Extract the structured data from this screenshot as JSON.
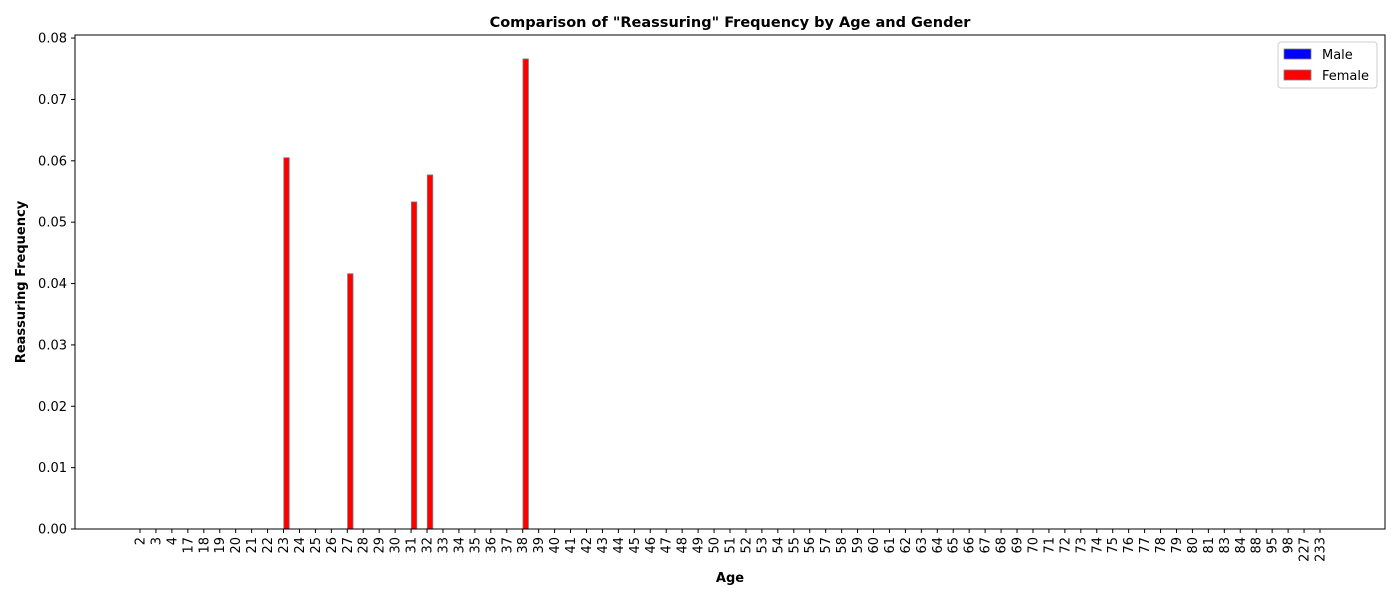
{
  "chart_data": {
    "type": "bar",
    "title": "Comparison of \"Reassuring\" Frequency by Age and Gender",
    "xlabel": "Age",
    "ylabel": "Reassuring Frequency",
    "ylim": [
      0,
      0.0805
    ],
    "yticks": [
      "0.00",
      "0.01",
      "0.02",
      "0.03",
      "0.04",
      "0.05",
      "0.06",
      "0.07",
      "0.08"
    ],
    "grid": false,
    "legend_position": "top-right",
    "categories": [
      "2",
      "3",
      "4",
      "17",
      "18",
      "19",
      "20",
      "21",
      "22",
      "23",
      "24",
      "25",
      "26",
      "27",
      "28",
      "29",
      "30",
      "31",
      "32",
      "33",
      "34",
      "35",
      "36",
      "37",
      "38",
      "39",
      "40",
      "41",
      "42",
      "43",
      "44",
      "45",
      "46",
      "47",
      "48",
      "49",
      "50",
      "51",
      "52",
      "53",
      "54",
      "55",
      "56",
      "57",
      "58",
      "59",
      "60",
      "61",
      "62",
      "63",
      "64",
      "65",
      "66",
      "67",
      "68",
      "69",
      "70",
      "71",
      "72",
      "73",
      "74",
      "75",
      "76",
      "77",
      "78",
      "79",
      "80",
      "81",
      "83",
      "84",
      "88",
      "95",
      "98",
      "227",
      "233"
    ],
    "series": [
      {
        "name": "Male",
        "color": "#0000ff",
        "values": [
          0,
          0,
          0,
          0,
          0,
          0,
          0,
          0,
          0,
          0,
          0,
          0,
          0,
          0,
          0,
          0,
          0,
          0,
          0,
          0,
          0,
          0,
          0,
          0,
          0,
          0,
          0,
          0,
          0,
          0,
          0,
          0,
          0,
          0,
          0,
          0,
          0,
          0,
          0,
          0,
          0,
          0,
          0,
          0,
          0,
          0,
          0,
          0,
          0,
          0,
          0,
          0,
          0,
          0,
          0,
          0,
          0,
          0,
          0,
          0,
          0,
          0,
          0,
          0,
          0,
          0,
          0,
          0,
          0,
          0,
          0,
          0,
          0,
          0,
          0
        ]
      },
      {
        "name": "Female",
        "color": "#ff0000",
        "values": [
          0,
          0,
          0,
          0,
          0,
          0,
          0,
          0,
          0,
          0.0605,
          0,
          0,
          0,
          0.0416,
          0,
          0,
          0,
          0.0533,
          0.0577,
          0,
          0,
          0,
          0,
          0,
          0.0766,
          0,
          0,
          0,
          0,
          0,
          0,
          0,
          0,
          0,
          0,
          0,
          0,
          0,
          0,
          0,
          0,
          0,
          0,
          0,
          0,
          0,
          0,
          0,
          0,
          0,
          0,
          0,
          0,
          0,
          0,
          0,
          0,
          0,
          0,
          0,
          0,
          0,
          0,
          0,
          0,
          0,
          0,
          0,
          0,
          0,
          0,
          0,
          0,
          0,
          0
        ]
      }
    ]
  }
}
